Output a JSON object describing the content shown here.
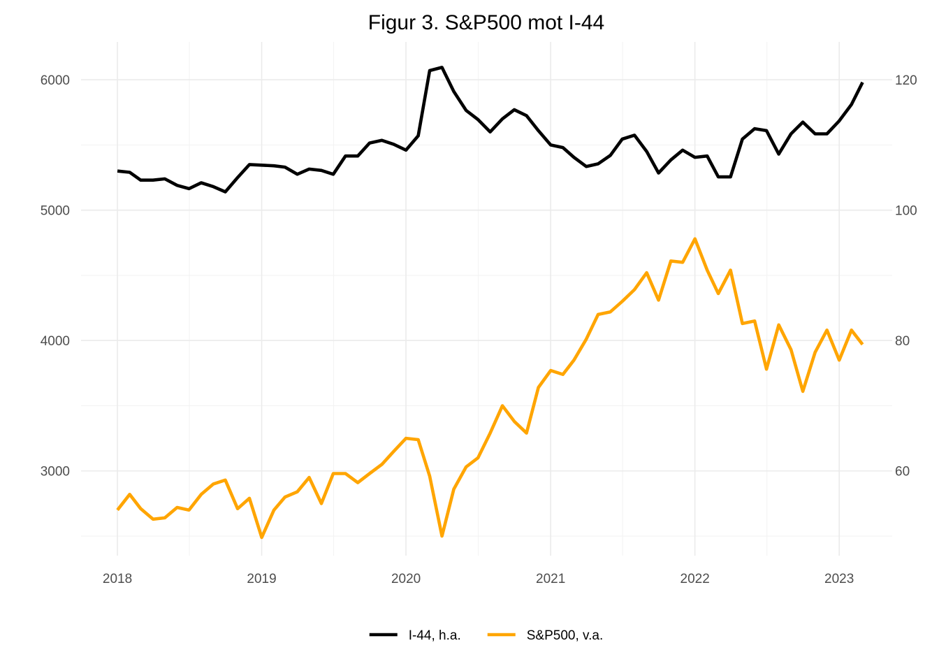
{
  "chart_data": {
    "type": "line",
    "title": "Figur 3. S&P500 mot I-44",
    "xlabel": "",
    "ylabel_left": "",
    "ylabel_right": "",
    "x_range": [
      "2017-10-01",
      "2023-05-15"
    ],
    "x_ticks": [
      "2018",
      "2019",
      "2020",
      "2021",
      "2022",
      "2023"
    ],
    "y_left": {
      "range": [
        2350,
        6290
      ],
      "ticks": [
        3000,
        4000,
        5000,
        6000
      ]
    },
    "y_right": {
      "range": [
        47,
        125.8
      ],
      "ticks": [
        60,
        80,
        100,
        120
      ]
    },
    "grid": true,
    "legend_position": "bottom",
    "x": [
      "2018-01",
      "2018-02",
      "2018-03",
      "2018-04",
      "2018-05",
      "2018-06",
      "2018-07",
      "2018-08",
      "2018-09",
      "2018-10",
      "2018-11",
      "2018-12",
      "2019-01",
      "2019-02",
      "2019-03",
      "2019-04",
      "2019-05",
      "2019-06",
      "2019-07",
      "2019-08",
      "2019-09",
      "2019-10",
      "2019-11",
      "2019-12",
      "2020-01",
      "2020-02",
      "2020-03",
      "2020-04",
      "2020-05",
      "2020-06",
      "2020-07",
      "2020-08",
      "2020-09",
      "2020-10",
      "2020-11",
      "2020-12",
      "2021-01",
      "2021-02",
      "2021-03",
      "2021-04",
      "2021-05",
      "2021-06",
      "2021-07",
      "2021-08",
      "2021-09",
      "2021-10",
      "2021-11",
      "2021-12",
      "2022-01",
      "2022-02",
      "2022-03",
      "2022-04",
      "2022-05",
      "2022-06",
      "2022-07",
      "2022-08",
      "2022-09",
      "2022-10",
      "2022-11",
      "2022-12",
      "2023-01",
      "2023-02",
      "2023-03"
    ],
    "series": [
      {
        "name": "I-44, h.a.",
        "axis": "right",
        "color": "#000000",
        "values": [
          106.0,
          105.8,
          104.6,
          104.6,
          104.8,
          103.8,
          103.3,
          104.2,
          103.6,
          102.8,
          105.0,
          107.0,
          106.9,
          106.8,
          106.6,
          105.5,
          106.3,
          106.1,
          105.5,
          108.3,
          108.3,
          110.3,
          110.7,
          110.1,
          109.2,
          111.4,
          121.4,
          121.9,
          118.2,
          115.3,
          113.9,
          112.0,
          114.0,
          115.4,
          114.5,
          112.2,
          110.0,
          109.6,
          108.1,
          106.7,
          107.1,
          108.4,
          110.9,
          111.5,
          109.0,
          105.7,
          107.7,
          109.2,
          108.1,
          108.3,
          105.1,
          105.1,
          110.9,
          112.5,
          112.2,
          108.6,
          111.7,
          113.5,
          111.7,
          111.7,
          113.7,
          116.2,
          119.6
        ]
      },
      {
        "name": "S&P500, v.a.",
        "axis": "left",
        "color": "#ffa500",
        "values": [
          2700,
          2820,
          2710,
          2630,
          2640,
          2720,
          2700,
          2820,
          2900,
          2930,
          2710,
          2790,
          2490,
          2700,
          2800,
          2840,
          2950,
          2750,
          2980,
          2980,
          2910,
          2980,
          3050,
          3150,
          3250,
          3240,
          2960,
          2500,
          2860,
          3030,
          3100,
          3290,
          3500,
          3380,
          3290,
          3640,
          3770,
          3740,
          3850,
          4010,
          4200,
          4220,
          4300,
          4390,
          4520,
          4310,
          4610,
          4600,
          4780,
          4540,
          4360,
          4540,
          4130,
          4150,
          3780,
          4120,
          3930,
          3610,
          3910,
          4080,
          3850,
          4080,
          3970
        ]
      }
    ]
  }
}
